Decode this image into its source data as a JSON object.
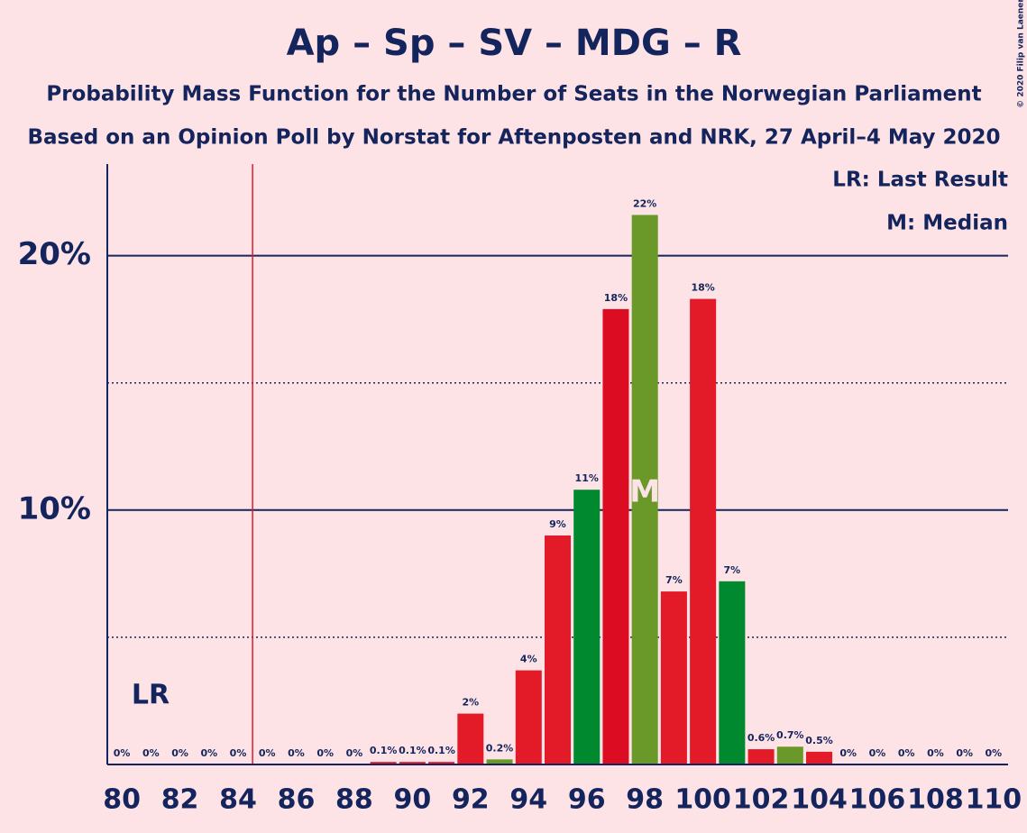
{
  "chart_data": {
    "type": "bar",
    "title": "Ap – Sp – SV – MDG – R",
    "subtitle": "Probability Mass Function for the Number of Seats in the Norwegian Parliament",
    "subtitle2": "Based on an Opinion Poll by Norstat for Aftenposten and NRK, 27 April–4 May 2020",
    "copyright": "© 2020 Filip van Laenen",
    "legend": [
      "LR: Last Result",
      "M: Median"
    ],
    "categories": [
      80,
      null,
      82,
      null,
      84,
      null,
      86,
      null,
      88,
      null,
      90,
      null,
      92,
      null,
      94,
      null,
      96,
      null,
      98,
      null,
      100,
      null,
      102,
      null,
      104,
      null,
      106,
      null,
      108,
      null,
      110
    ],
    "values": [
      0,
      0,
      0,
      0,
      0,
      0,
      0,
      0,
      0,
      0.1,
      0.1,
      0.1,
      2.0,
      0.2,
      3.7,
      9.0,
      10.8,
      17.9,
      21.6,
      6.8,
      18.3,
      7.2,
      0.6,
      0.7,
      0.5,
      0,
      0,
      0,
      0,
      0,
      0
    ],
    "value_labels": [
      "0%",
      "0%",
      "0%",
      "0%",
      "0%",
      "0%",
      "0%",
      "0%",
      "0%",
      "0.1%",
      "0.1%",
      "0.1%",
      "2%",
      "0.2%",
      "4%",
      "9%",
      "11%",
      "18%",
      "22%",
      "7%",
      "18%",
      "7%",
      "0.6%",
      "0.7%",
      "0.5%",
      "0%",
      "0%",
      "0%",
      "0%",
      "0%",
      "0%"
    ],
    "colors": [
      "#e31a27",
      "#e31a27",
      "#e31a27",
      "#e31a27",
      "#e31a27",
      "#e31a27",
      "#e31a27",
      "#e31a27",
      "#e31a27",
      "#e31a27",
      "#e31a27",
      "#e31a27",
      "#e31a27",
      "#6a992a",
      "#e31a27",
      "#e31a27",
      "#00892f",
      "#dc0c22",
      "#6a992a",
      "#e31a27",
      "#e31a27",
      "#00892f",
      "#e31a27",
      "#6a992a",
      "#e31a27",
      "#e31a27",
      "#e31a27",
      "#e31a27",
      "#e31a27",
      "#e31a27",
      "#e31a27"
    ],
    "ylim": [
      0,
      23.6
    ],
    "yticks": [
      {
        "value": 10,
        "label": "10%"
      },
      {
        "value": 20,
        "label": "20%"
      }
    ],
    "minor_yticks": [
      5,
      15
    ],
    "last_result": 85,
    "last_result_label": "LR",
    "median": 98,
    "median_label": "M"
  }
}
